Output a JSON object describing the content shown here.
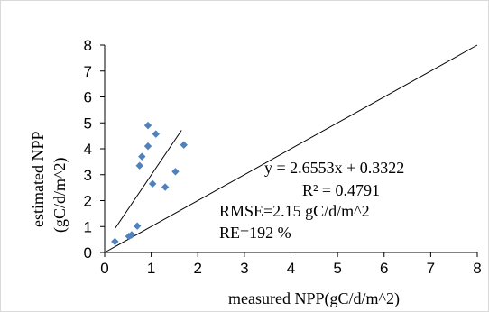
{
  "chart_data": {
    "type": "scatter",
    "xlabel": "measured NPP(gC/d/m^2)",
    "ylabel_line1": "estimated NPP",
    "ylabel_line2": "(gC/d/m^2)",
    "xlim": [
      0,
      8
    ],
    "ylim": [
      0,
      8
    ],
    "xticks": [
      "0",
      "1",
      "2",
      "3",
      "4",
      "5",
      "6",
      "7",
      "8"
    ],
    "yticks": [
      "0",
      "1",
      "2",
      "3",
      "4",
      "5",
      "6",
      "7",
      "8"
    ],
    "grid": false,
    "legend": "none",
    "marker_color": "#4F81BD",
    "points": [
      {
        "x": 0.22,
        "y": 0.42
      },
      {
        "x": 0.52,
        "y": 0.62
      },
      {
        "x": 0.58,
        "y": 0.68
      },
      {
        "x": 0.7,
        "y": 1.02
      },
      {
        "x": 0.75,
        "y": 3.35
      },
      {
        "x": 0.8,
        "y": 3.7
      },
      {
        "x": 0.93,
        "y": 4.1
      },
      {
        "x": 0.93,
        "y": 4.9
      },
      {
        "x": 1.03,
        "y": 2.65
      },
      {
        "x": 1.1,
        "y": 4.57
      },
      {
        "x": 1.3,
        "y": 2.52
      },
      {
        "x": 1.52,
        "y": 3.12
      },
      {
        "x": 1.7,
        "y": 4.15
      }
    ],
    "trendline": {
      "slope": 2.6553,
      "intercept": 0.3322,
      "x_range": [
        0.22,
        1.65
      ]
    },
    "reference_line": {
      "x1": 0,
      "y1": 0,
      "x2": 8,
      "y2": 8
    },
    "annotations": {
      "equation": "y = 2.6553x + 0.3322",
      "r_squared": "R² = 0.4791",
      "rmse": "RMSE=2.15 gC/d/m^2",
      "re": "RE=192 %"
    }
  }
}
